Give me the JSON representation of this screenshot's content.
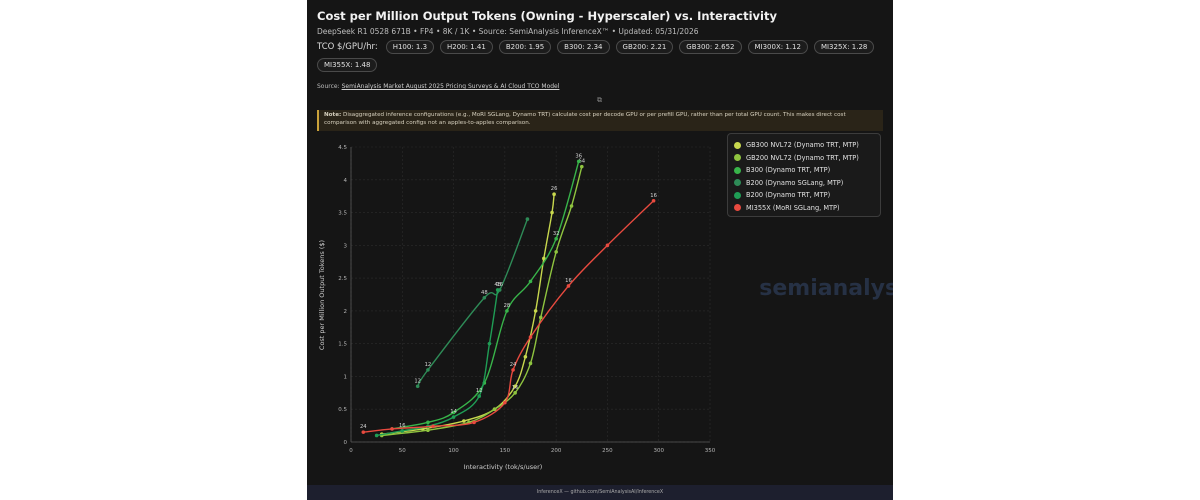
{
  "header": {
    "title": "Cost per Million Output Tokens (Owning - Hyperscaler) vs. Interactivity",
    "subtitle": "DeepSeek R1 0528 671B • FP4 • 8K / 1K • Source: SemiAnalysis InferenceX™ • Updated: 05/31/2026"
  },
  "tco": {
    "label": "TCO $/GPU/hr:",
    "chips": [
      "H100: 1.3",
      "H200: 1.41",
      "B200: 1.95",
      "B300: 2.34",
      "GB200: 2.21",
      "GB300: 2.652",
      "MI300X: 1.12",
      "MI325X: 1.28",
      "MI355X: 1.48"
    ]
  },
  "source": {
    "prefix": "Source:",
    "link_text": "SemiAnalysis Market August 2025 Pricing Surveys & AI Cloud TCO Model",
    "external_icon": "external-link-icon"
  },
  "note": {
    "strong": "Note:",
    "text": "Disaggregated inference configurations (e.g., MoRI SGLang, Dynamo TRT) calculate cost per decode GPU or per prefill GPU, rather than per total GPU count. This makes direct cost comparison with aggregated configs not an apples-to-apples comparison."
  },
  "watermark": "semianalysis",
  "footer": "InferenceX — github.com/SemiAnalysisAI/InferenceX",
  "chart_data": {
    "type": "line",
    "xlabel": "Interactivity (tok/s/user)",
    "ylabel": "Cost per Million Output Tokens ($)",
    "xlim": [
      0,
      350
    ],
    "ylim": [
      0,
      4.5
    ],
    "xticks": [
      0,
      50,
      100,
      150,
      200,
      250,
      300,
      350
    ],
    "yticks": [
      0,
      0.5,
      1,
      1.5,
      2,
      2.5,
      3,
      3.5,
      4,
      4.5
    ],
    "grid": true,
    "legend_position": "top-right",
    "series": [
      {
        "name": "GB300 NVL72 (Dynamo TRT, MTP)",
        "color": "#c8d84e",
        "x": [
          30,
          70,
          110,
          140,
          160,
          170,
          180,
          188,
          196,
          198
        ],
        "y": [
          0.12,
          0.2,
          0.32,
          0.5,
          0.85,
          1.3,
          2.0,
          2.8,
          3.5,
          3.78
        ],
        "labels": [
          null,
          null,
          null,
          null,
          null,
          null,
          null,
          null,
          null,
          "26"
        ]
      },
      {
        "name": "GB200 NVL72 (Dynamo TRT, MTP)",
        "color": "#8fc43f",
        "x": [
          30,
          75,
          115,
          140,
          160,
          175,
          185,
          200,
          215,
          225
        ],
        "y": [
          0.1,
          0.18,
          0.3,
          0.5,
          0.75,
          1.2,
          1.9,
          2.9,
          3.6,
          4.2
        ],
        "labels": [
          null,
          null,
          null,
          null,
          "16",
          null,
          null,
          null,
          null,
          "64"
        ]
      },
      {
        "name": "B300 (Dynamo TRT, MTP)",
        "color": "#38b44a",
        "x": [
          40,
          75,
          100,
          130,
          152,
          175,
          200,
          222
        ],
        "y": [
          0.2,
          0.3,
          0.45,
          0.9,
          2.0,
          2.45,
          3.1,
          4.28
        ],
        "labels": [
          null,
          null,
          null,
          null,
          "28",
          null,
          "32",
          "36"
        ]
      },
      {
        "name": "B200 (Dynamo SGLang, MTP)",
        "color": "#2e8b57",
        "x": [
          65,
          75,
          130,
          145,
          172
        ],
        "y": [
          0.85,
          1.1,
          2.2,
          2.32,
          3.4
        ],
        "labels": [
          "12",
          "12",
          "48",
          "16",
          null
        ]
      },
      {
        "name": "B200 (Dynamo TRT, MTP)",
        "color": "#1f9d55",
        "x": [
          25,
          50,
          75,
          100,
          125,
          135,
          143
        ],
        "y": [
          0.1,
          0.17,
          0.24,
          0.38,
          0.7,
          1.5,
          2.32
        ],
        "labels": [
          null,
          "16",
          null,
          "14",
          "12",
          null,
          "48"
        ]
      },
      {
        "name": "MI355X (MoRI SGLang, MTP)",
        "color": "#e84a3f",
        "x": [
          12,
          40,
          80,
          120,
          150,
          158,
          175,
          212,
          250,
          295
        ],
        "y": [
          0.15,
          0.2,
          0.24,
          0.3,
          0.6,
          1.1,
          1.6,
          2.38,
          3.0,
          3.68
        ],
        "labels": [
          "24",
          null,
          null,
          null,
          null,
          "24",
          null,
          "16",
          null,
          "16"
        ]
      }
    ]
  }
}
